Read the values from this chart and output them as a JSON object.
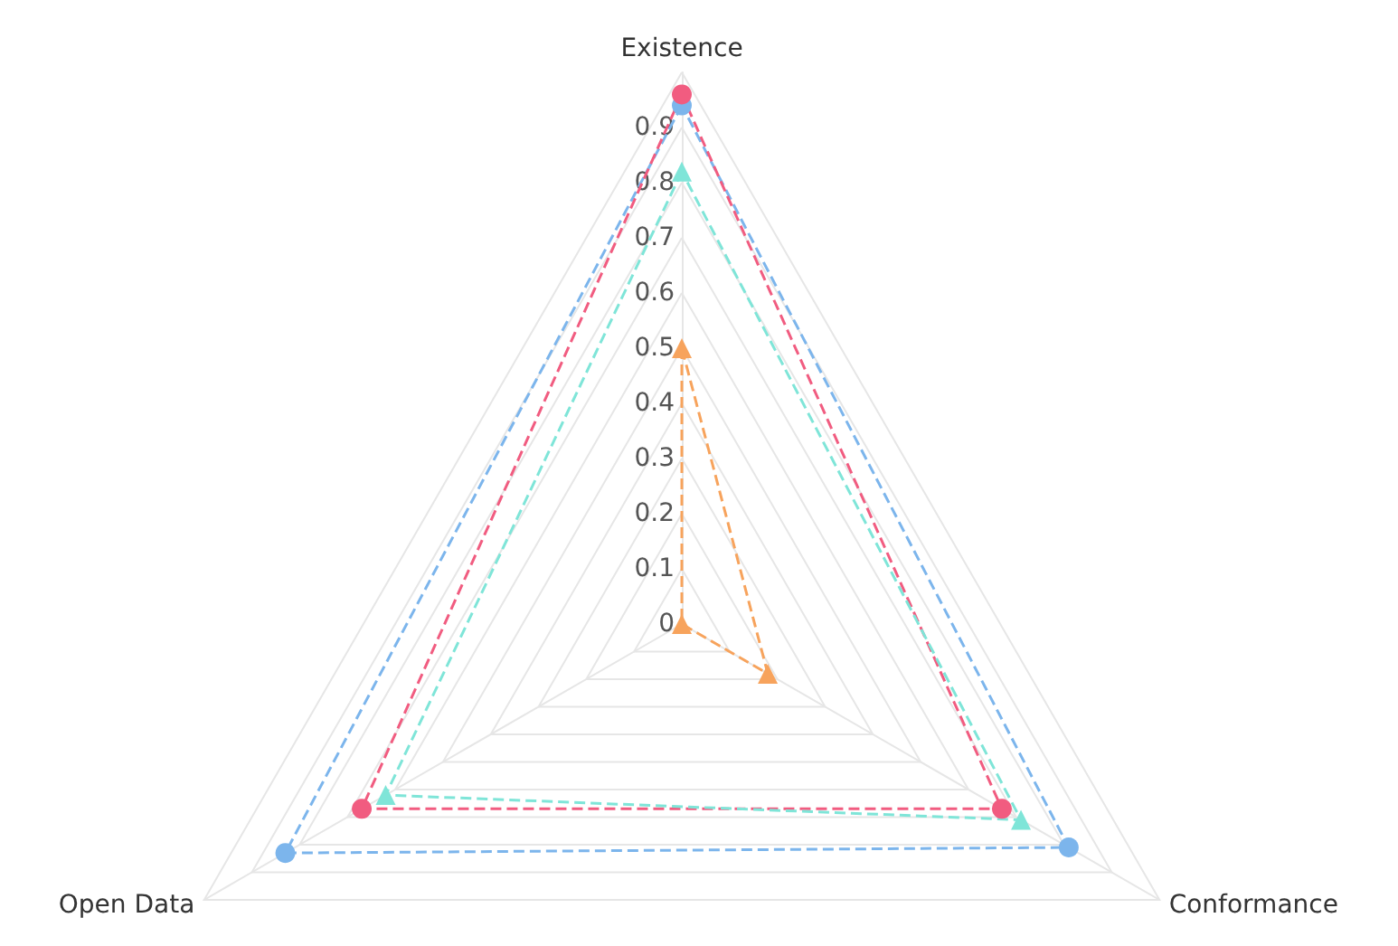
{
  "chart_data": {
    "type": "radar",
    "categories": [
      "Existence",
      "Conformance",
      "Open Data"
    ],
    "ylim": [
      0,
      1
    ],
    "yticks": [
      0,
      0.1,
      0.2,
      0.3,
      0.4,
      0.5,
      0.6,
      0.7,
      0.8,
      0.9
    ],
    "grid": true,
    "line_style": "dashed",
    "series": [
      {
        "color": "#7cb5ec",
        "marker": "circle",
        "values": [
          0.94,
          0.81,
          0.83
        ]
      },
      {
        "color": "#f15c80",
        "marker": "circle",
        "values": [
          0.96,
          0.67,
          0.67
        ]
      },
      {
        "color": "#7fe5d8",
        "marker": "triangle",
        "values": [
          0.82,
          0.71,
          0.62
        ]
      },
      {
        "color": "#f7a35c",
        "marker": "triangle",
        "values": [
          0.5,
          0.18,
          0
        ]
      }
    ]
  }
}
